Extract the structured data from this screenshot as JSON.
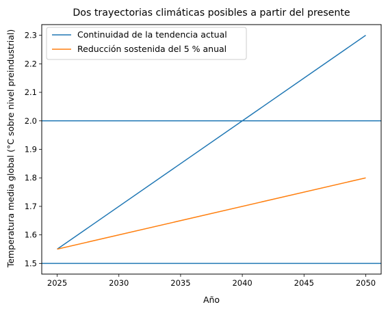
{
  "chart_data": {
    "type": "line",
    "title": "Dos trayectorias climáticas posibles a partir del presente",
    "xlabel": "Año",
    "ylabel": "Temperatura media global (°C sobre nivel preindustrial)",
    "xlim": [
      2023.75,
      2051.25
    ],
    "ylim": [
      1.4625,
      2.3375
    ],
    "xticks": [
      2025,
      2030,
      2035,
      2040,
      2045,
      2050
    ],
    "yticks": [
      1.5,
      1.6,
      1.7,
      1.8,
      1.9,
      2.0,
      2.1,
      2.2,
      2.3
    ],
    "xtick_labels": [
      "2025",
      "2030",
      "2035",
      "2040",
      "2045",
      "2050"
    ],
    "ytick_labels": [
      "1.5",
      "1.6",
      "1.7",
      "1.8",
      "1.9",
      "2.0",
      "2.1",
      "2.2",
      "2.3"
    ],
    "grid": false,
    "legend_position": "top-left",
    "series": [
      {
        "name": "Continuidad de la tendencia actual",
        "color": "#1f77b4",
        "x": [
          2025,
          2050
        ],
        "y": [
          1.55,
          2.3
        ]
      },
      {
        "name": "Reducción sostenida del 5 % anual",
        "color": "#ff7f0e",
        "x": [
          2025,
          2050
        ],
        "y": [
          1.55,
          1.8
        ]
      }
    ],
    "reference_lines": [
      {
        "y": 2.0,
        "color": "#1f77b4"
      },
      {
        "y": 1.5,
        "color": "#1f77b4"
      }
    ]
  }
}
